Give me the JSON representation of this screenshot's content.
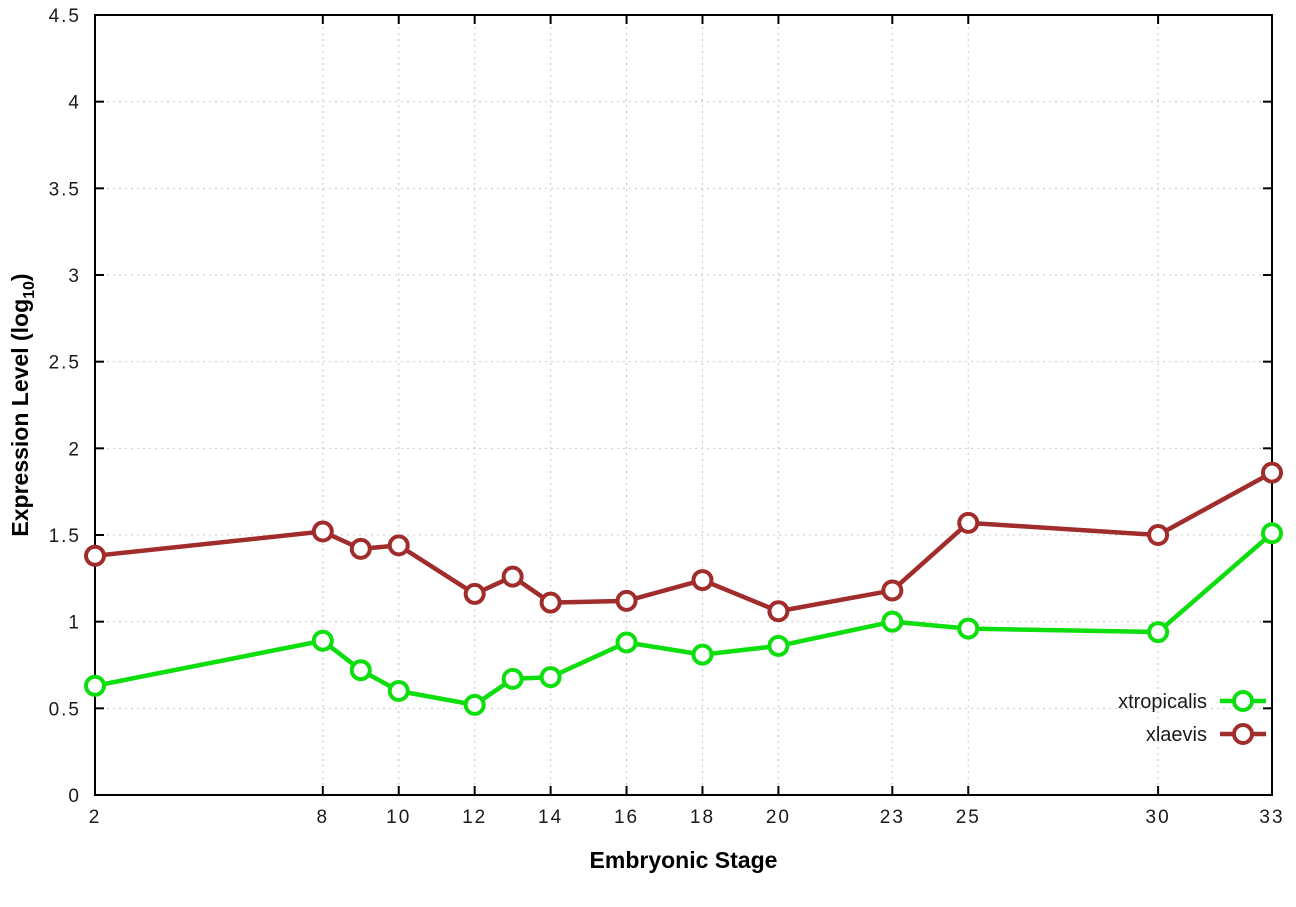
{
  "page": {
    "background": "#ffffff"
  },
  "chart_data": {
    "type": "line",
    "title": "",
    "xlabel": "Embryonic Stage",
    "ylabel": {
      "text": "Expression Level (log",
      "sub": "10",
      "suffix": ")"
    },
    "x": [
      2,
      8,
      9,
      10,
      12,
      13,
      14,
      16,
      18,
      20,
      23,
      25,
      30,
      33
    ],
    "x_tick_labels": [
      2,
      8,
      10,
      12,
      14,
      16,
      18,
      20,
      23,
      25,
      30,
      33
    ],
    "xlim": [
      2,
      33
    ],
    "y_ticks": [
      0,
      0.5,
      1,
      1.5,
      2,
      2.5,
      3,
      3.5,
      4,
      4.5
    ],
    "ylim": [
      0,
      4.5
    ],
    "grid": true,
    "grid_color": "#c8c8c8",
    "border_color": "#000000",
    "legend_position": "inside-right-bottom",
    "series": [
      {
        "name": "xtropicalis",
        "color": "#0dde0d",
        "values": [
          0.63,
          0.89,
          0.72,
          0.6,
          0.52,
          0.67,
          0.68,
          0.88,
          0.81,
          0.86,
          1.0,
          0.96,
          0.94,
          1.51
        ]
      },
      {
        "name": "xlaevis",
        "color": "#a12c2c",
        "values": [
          1.38,
          1.52,
          1.42,
          1.44,
          1.16,
          1.26,
          1.11,
          1.12,
          1.24,
          1.06,
          1.18,
          1.57,
          1.5,
          1.86
        ]
      }
    ]
  }
}
